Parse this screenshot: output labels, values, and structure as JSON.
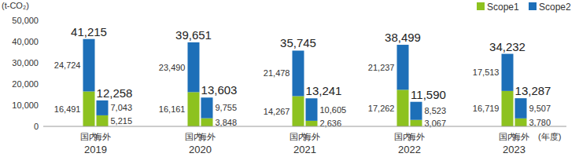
{
  "chart_data": {
    "type": "bar",
    "stacked": true,
    "data_labels": true,
    "grid": false,
    "legend": "top-right",
    "y_label": "(t-CO₂)",
    "x_label": "(年度)",
    "groups": [
      "2019",
      "2020",
      "2021",
      "2022",
      "2023"
    ],
    "categories": [
      "国内",
      "海外",
      "国内",
      "海外",
      "国内",
      "海外",
      "国内",
      "海外",
      "国内",
      "海外"
    ],
    "series": [
      {
        "name": "Scope1",
        "color": "#8dc21f",
        "values": [
          16491,
          5215,
          16161,
          3848,
          14267,
          2636,
          17262,
          3067,
          16719,
          3780
        ],
        "value_labels": [
          "16,491",
          "5,215",
          "16,161",
          "3,848",
          "14,267",
          "2,636",
          "17,262",
          "3,067",
          "16,719",
          "3,780"
        ]
      },
      {
        "name": "Scope2",
        "color": "#1d6fb8",
        "values": [
          24724,
          7043,
          23490,
          9755,
          21478,
          10605,
          21237,
          8523,
          17513,
          9507
        ],
        "value_labels": [
          "24,724",
          "7,043",
          "23,490",
          "9,755",
          "21,478",
          "10,605",
          "21,237",
          "8,523",
          "17,513",
          "9,507"
        ]
      }
    ],
    "totals": [
      41215,
      12258,
      39651,
      13603,
      35745,
      13241,
      38499,
      11590,
      34232,
      13287
    ],
    "total_labels": [
      "41,215",
      "12,258",
      "39,651",
      "13,603",
      "35,745",
      "13,241",
      "38,499",
      "11,590",
      "34,232",
      "13,287"
    ],
    "ylim": [
      0,
      50000
    ],
    "yticks": [
      0,
      {
        "value": 10000,
        "label": "10,000"
      },
      {
        "value": 20000,
        "label": "20,000"
      },
      {
        "value": 30000,
        "label": "30,000"
      },
      {
        "value": 40000,
        "label": "40,000"
      },
      {
        "value": 50000,
        "label": "50,000"
      }
    ]
  }
}
